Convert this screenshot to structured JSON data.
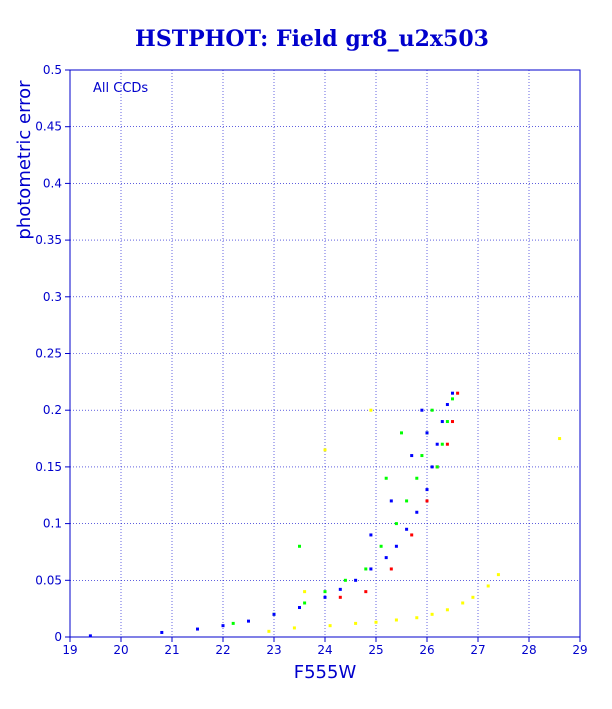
{
  "chart_data": {
    "type": "scatter",
    "title": "HSTPHOT: Field gr8_u2x503",
    "xlabel": "F555W",
    "ylabel": "photometric error",
    "annotation": "All CCDs",
    "xlim": [
      19,
      29
    ],
    "ylim": [
      0,
      0.5
    ],
    "x_ticks": [
      "19",
      "20",
      "21",
      "22",
      "23",
      "24",
      "25",
      "26",
      "27",
      "28",
      "29"
    ],
    "y_ticks": [
      "0",
      "0.05",
      "0.1",
      "0.15",
      "0.2",
      "0.25",
      "0.3",
      "0.35",
      "0.4",
      "0.45",
      "0.5"
    ],
    "grid": true,
    "series": [
      {
        "color": "#ffff00",
        "x": [
          22.9,
          23.4,
          24.1,
          24.6,
          25.0,
          25.4,
          25.8,
          26.1,
          26.4,
          26.7,
          26.9,
          27.2,
          27.4,
          28.6,
          24.0,
          24.9,
          23.6
        ],
        "y": [
          0.005,
          0.008,
          0.01,
          0.012,
          0.013,
          0.015,
          0.017,
          0.02,
          0.024,
          0.03,
          0.035,
          0.045,
          0.055,
          0.175,
          0.165,
          0.2,
          0.04
        ]
      },
      {
        "color": "#ff0000",
        "x": [
          24.3,
          24.8,
          25.3,
          25.7,
          26.0,
          26.2,
          26.4,
          26.5,
          26.6
        ],
        "y": [
          0.035,
          0.04,
          0.06,
          0.09,
          0.12,
          0.15,
          0.17,
          0.19,
          0.215
        ]
      },
      {
        "color": "#00ff00",
        "x": [
          22.2,
          23.0,
          23.6,
          24.0,
          24.4,
          24.8,
          25.1,
          25.4,
          25.6,
          25.8,
          25.9,
          26.0,
          26.1,
          26.2,
          26.3,
          26.4,
          26.5,
          25.2,
          25.5,
          23.5
        ],
        "y": [
          0.012,
          0.02,
          0.03,
          0.04,
          0.05,
          0.06,
          0.08,
          0.1,
          0.12,
          0.14,
          0.16,
          0.18,
          0.2,
          0.15,
          0.17,
          0.19,
          0.21,
          0.14,
          0.18,
          0.08
        ]
      },
      {
        "color": "#0000ff",
        "x": [
          19.4,
          20.8,
          21.5,
          22.0,
          22.5,
          23.0,
          23.5,
          24.0,
          24.3,
          24.6,
          24.9,
          25.2,
          25.4,
          25.6,
          25.8,
          26.0,
          26.1,
          26.2,
          26.3,
          26.4,
          26.5,
          24.9,
          25.3,
          25.7,
          26.0,
          25.9
        ],
        "y": [
          0.001,
          0.004,
          0.007,
          0.01,
          0.014,
          0.02,
          0.026,
          0.035,
          0.042,
          0.05,
          0.06,
          0.07,
          0.08,
          0.095,
          0.11,
          0.13,
          0.15,
          0.17,
          0.19,
          0.205,
          0.215,
          0.09,
          0.12,
          0.16,
          0.18,
          0.2
        ]
      }
    ]
  }
}
